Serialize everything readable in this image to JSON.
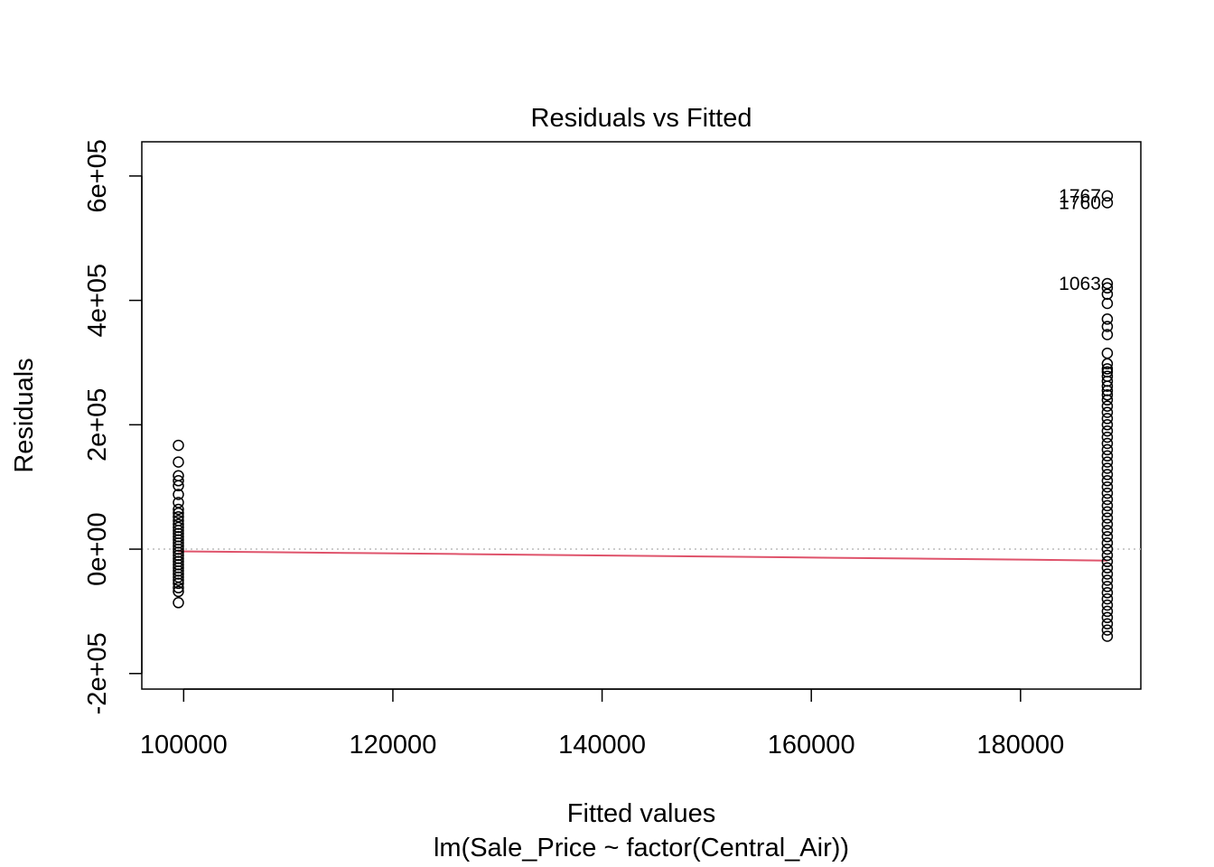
{
  "chart_data": {
    "type": "scatter",
    "title": "Residuals vs Fitted",
    "xlabel": "Fitted values",
    "ylabel": "Residuals",
    "subtitle": "lm(Sale_Price ~ factor(Central_Air))",
    "xlim": [
      96000,
      191500
    ],
    "ylim": [
      -225000,
      655000
    ],
    "x_ticks": [
      100000,
      120000,
      140000,
      160000,
      180000
    ],
    "x_tick_labels": [
      "100000",
      "120000",
      "140000",
      "160000",
      "180000"
    ],
    "y_ticks": [
      -200000,
      0,
      200000,
      400000,
      600000
    ],
    "y_tick_labels": [
      "-2e+05",
      "0e+00",
      "2e+05",
      "4e+05",
      "6e+05"
    ],
    "zero_line": {
      "y": 0,
      "style": "dotted",
      "color": "#bbbbbb"
    },
    "smooth_line": {
      "color": "#DF536B",
      "x": [
        99500,
        108000,
        117000,
        126000,
        135000,
        144000,
        153000,
        162000,
        171000,
        180000,
        188300
      ],
      "y": [
        -3500,
        -4800,
        -6300,
        -7800,
        -9300,
        -10800,
        -12300,
        -13800,
        -15300,
        -16800,
        -18500
      ]
    },
    "series": [
      {
        "x_value": 99500,
        "y": [
          167000,
          140000,
          118000,
          110000,
          102000,
          88000,
          75000,
          64000,
          58000,
          52000,
          46000,
          40000,
          35000,
          30000,
          25000,
          20000,
          15000,
          10000,
          5000,
          0,
          -5000,
          -10000,
          -15000,
          -20000,
          -25000,
          -30000,
          -35000,
          -40000,
          -45000,
          -50000,
          -55000,
          -62000,
          -68000,
          -86000
        ]
      },
      {
        "x_value": 188300,
        "y": [
          568000,
          557000,
          427000,
          420000,
          410000,
          395000,
          370000,
          358000,
          345000,
          315000,
          298000,
          290000,
          285000,
          278000,
          270000,
          262000,
          255000,
          248000,
          240000,
          230000,
          220000,
          210000,
          200000,
          190000,
          180000,
          170000,
          160000,
          150000,
          140000,
          130000,
          120000,
          110000,
          100000,
          90000,
          80000,
          70000,
          60000,
          50000,
          40000,
          30000,
          20000,
          10000,
          0,
          -10000,
          -20000,
          -30000,
          -40000,
          -50000,
          -60000,
          -70000,
          -80000,
          -90000,
          -100000,
          -110000,
          -120000,
          -130000,
          -140000
        ]
      }
    ],
    "labels": [
      {
        "text": "1767",
        "x": 188300,
        "y": 568000
      },
      {
        "text": "1760",
        "x": 188300,
        "y": 557000
      },
      {
        "text": "1063",
        "x": 188300,
        "y": 427000
      }
    ]
  }
}
